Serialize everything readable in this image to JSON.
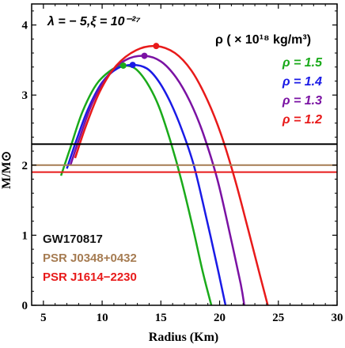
{
  "chart_data": {
    "type": "line",
    "title": "λ = − 5,ξ = 10⁻²⁷",
    "xlabel": "Radius (Km)",
    "ylabel": "M/M⊙",
    "xlim": [
      4,
      30
    ],
    "ylim": [
      0,
      4.3
    ],
    "xticks": [
      5,
      10,
      15,
      20,
      25,
      30
    ],
    "yticks": [
      0,
      1,
      2,
      3,
      4
    ],
    "grid": false,
    "legend_title": "ρ ( × 10¹⁸ kg/m³)",
    "legend_placement": "top-right",
    "series": [
      {
        "name": "ρ = 1.5",
        "color": "#1aaa1a",
        "x": [
          6.5,
          7.3,
          8.3,
          9.5,
          10.8,
          11.8,
          12.8,
          13.8,
          14.8,
          15.8,
          16.8,
          17.8,
          18.6,
          19.3
        ],
        "y": [
          1.85,
          2.25,
          2.75,
          3.15,
          3.36,
          3.42,
          3.38,
          3.18,
          2.85,
          2.35,
          1.75,
          1.05,
          0.45,
          0.0
        ],
        "max": {
          "x": 11.8,
          "y": 3.42
        }
      },
      {
        "name": "ρ = 1.4",
        "color": "#1a1ae6",
        "x": [
          7.0,
          7.8,
          8.8,
          10.0,
          11.3,
          12.6,
          13.8,
          14.8,
          15.8,
          16.8,
          17.8,
          18.8,
          19.8,
          20.5
        ],
        "y": [
          1.95,
          2.35,
          2.8,
          3.18,
          3.38,
          3.43,
          3.38,
          3.2,
          2.9,
          2.5,
          2.0,
          1.3,
          0.55,
          0.0
        ],
        "max": {
          "x": 12.6,
          "y": 3.43
        }
      },
      {
        "name": "ρ = 1.3",
        "color": "#7a12a3",
        "x": [
          7.3,
          8.1,
          9.2,
          10.5,
          12.0,
          13.6,
          15.0,
          16.3,
          17.5,
          18.6,
          19.8,
          20.9,
          21.8,
          22.1
        ],
        "y": [
          2.0,
          2.4,
          2.9,
          3.28,
          3.5,
          3.56,
          3.48,
          3.25,
          2.9,
          2.45,
          1.8,
          1.0,
          0.3,
          0.0
        ],
        "max": {
          "x": 13.6,
          "y": 3.56
        }
      },
      {
        "name": "ρ = 1.2",
        "color": "#e81a1a",
        "x": [
          7.7,
          8.6,
          9.8,
          11.2,
          12.9,
          14.6,
          16.2,
          17.6,
          18.9,
          20.1,
          21.3,
          22.4,
          23.4,
          24.1
        ],
        "y": [
          2.1,
          2.55,
          3.05,
          3.42,
          3.64,
          3.7,
          3.6,
          3.35,
          2.95,
          2.45,
          1.8,
          1.1,
          0.45,
          0.0
        ],
        "max": {
          "x": 14.6,
          "y": 3.7
        }
      }
    ],
    "hlines": [
      {
        "name": "GW170817",
        "y": 2.3,
        "color": "#000000"
      },
      {
        "name": "PSR J0348+0432",
        "y": 2.0,
        "color": "#a67c52"
      },
      {
        "name": "PSR J1614−2230",
        "y": 1.9,
        "color": "#e81a1a"
      }
    ]
  }
}
